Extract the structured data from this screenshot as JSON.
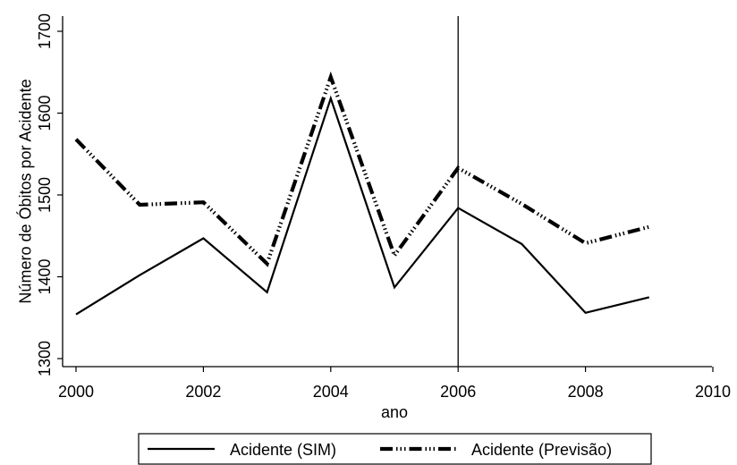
{
  "chart_data": {
    "type": "line",
    "title": "",
    "xlabel": "ano",
    "ylabel": "Número de Óbitos por Acidente",
    "xlim": [
      2000,
      2010
    ],
    "ylim": [
      1300,
      1700
    ],
    "xticks": [
      2000,
      2002,
      2004,
      2006,
      2008,
      2010
    ],
    "yticks": [
      1300,
      1400,
      1500,
      1600,
      1700
    ],
    "grid": false,
    "legend_position": "bottom",
    "vertical_reference_line": 2006,
    "x": [
      2000,
      2001,
      2002,
      2003,
      2004,
      2005,
      2006,
      2007,
      2008,
      2009
    ],
    "series": [
      {
        "name": "Acidente (SIM)",
        "style": "solid",
        "color": "#000000",
        "values": [
          1354,
          1402,
          1447,
          1381,
          1618,
          1387,
          1484,
          1440,
          1356,
          1375
        ]
      },
      {
        "name": "Acidente (Previsão)",
        "style": "dash-dot",
        "color": "#000000",
        "values": [
          1568,
          1488,
          1491,
          1416,
          1644,
          1426,
          1533,
          1489,
          1441,
          1461
        ]
      }
    ]
  }
}
